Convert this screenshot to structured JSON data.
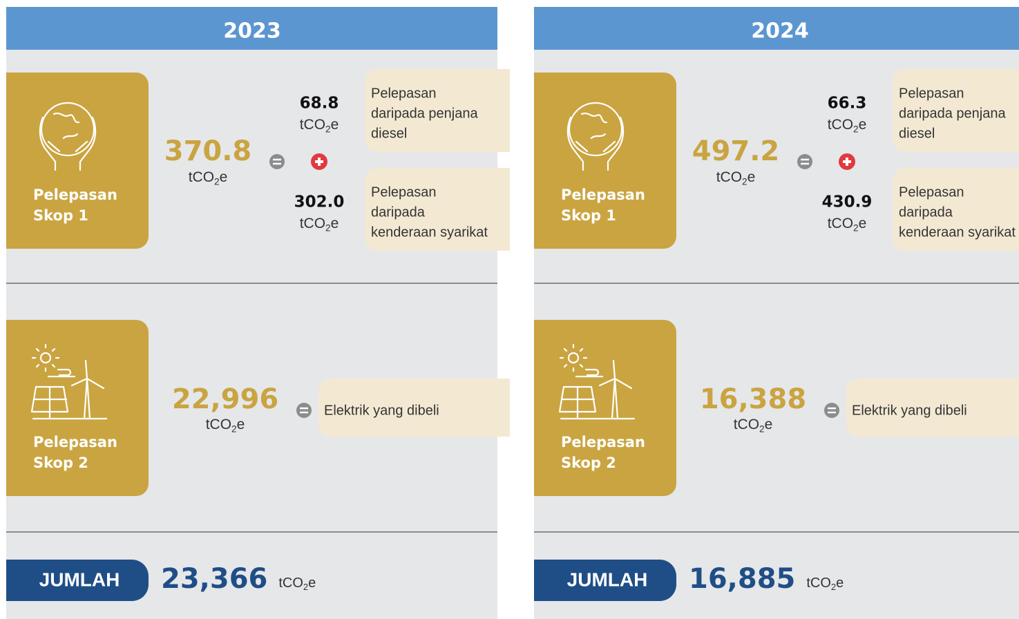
{
  "unit": {
    "base": "tCO",
    "sub": "2",
    "tail": "e"
  },
  "panels": [
    {
      "year": "2023",
      "scope1": {
        "label": [
          "Pelepasan",
          "Skop 1"
        ],
        "total": "370.8",
        "parts": [
          {
            "value": "68.8",
            "desc": [
              "Pelepasan",
              "daripada penjana",
              "diesel"
            ]
          },
          {
            "value": "302.0",
            "desc": [
              "Pelepasan",
              "daripada",
              "kenderaan syarikat"
            ]
          }
        ]
      },
      "scope2": {
        "label": [
          "Pelepasan",
          "Skop 2"
        ],
        "total": "22,996",
        "desc": "Elektrik yang dibeli"
      },
      "total": {
        "label": "JUMLAH",
        "value": "23,366"
      }
    },
    {
      "year": "2024",
      "scope1": {
        "label": [
          "Pelepasan",
          "Skop 1"
        ],
        "total": "497.2",
        "parts": [
          {
            "value": "66.3",
            "desc": [
              "Pelepasan",
              "daripada penjana",
              "diesel"
            ]
          },
          {
            "value": "430.9",
            "desc": [
              "Pelepasan",
              "daripada",
              "kenderaan syarikat"
            ]
          }
        ]
      },
      "scope2": {
        "label": [
          "Pelepasan",
          "Skop 2"
        ],
        "total": "16,388",
        "desc": "Elektrik yang dibeli"
      },
      "total": {
        "label": "JUMLAH",
        "value": "16,885"
      }
    }
  ]
}
